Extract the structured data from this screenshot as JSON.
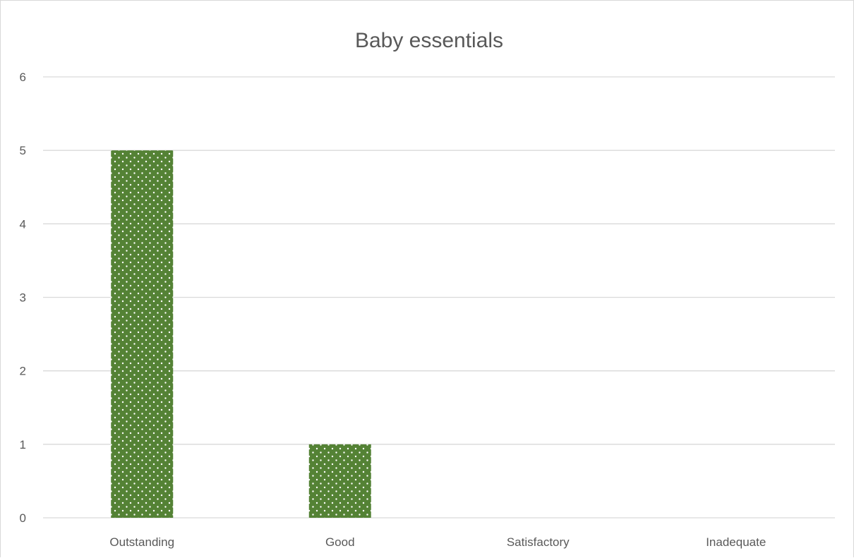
{
  "chart_data": {
    "type": "bar",
    "title": "Baby essentials",
    "categories": [
      "Outstanding",
      "Good",
      "Satisfactory",
      "Inadequate"
    ],
    "values": [
      5,
      1,
      0,
      0
    ],
    "ylim": [
      0,
      6
    ],
    "yticks": [
      0,
      1,
      2,
      3,
      4,
      5,
      6
    ],
    "grid": true,
    "bar_color": "#548235",
    "bar_pattern": "dotted",
    "gridline_color": "#d9d9d9",
    "text_color": "#595959"
  }
}
